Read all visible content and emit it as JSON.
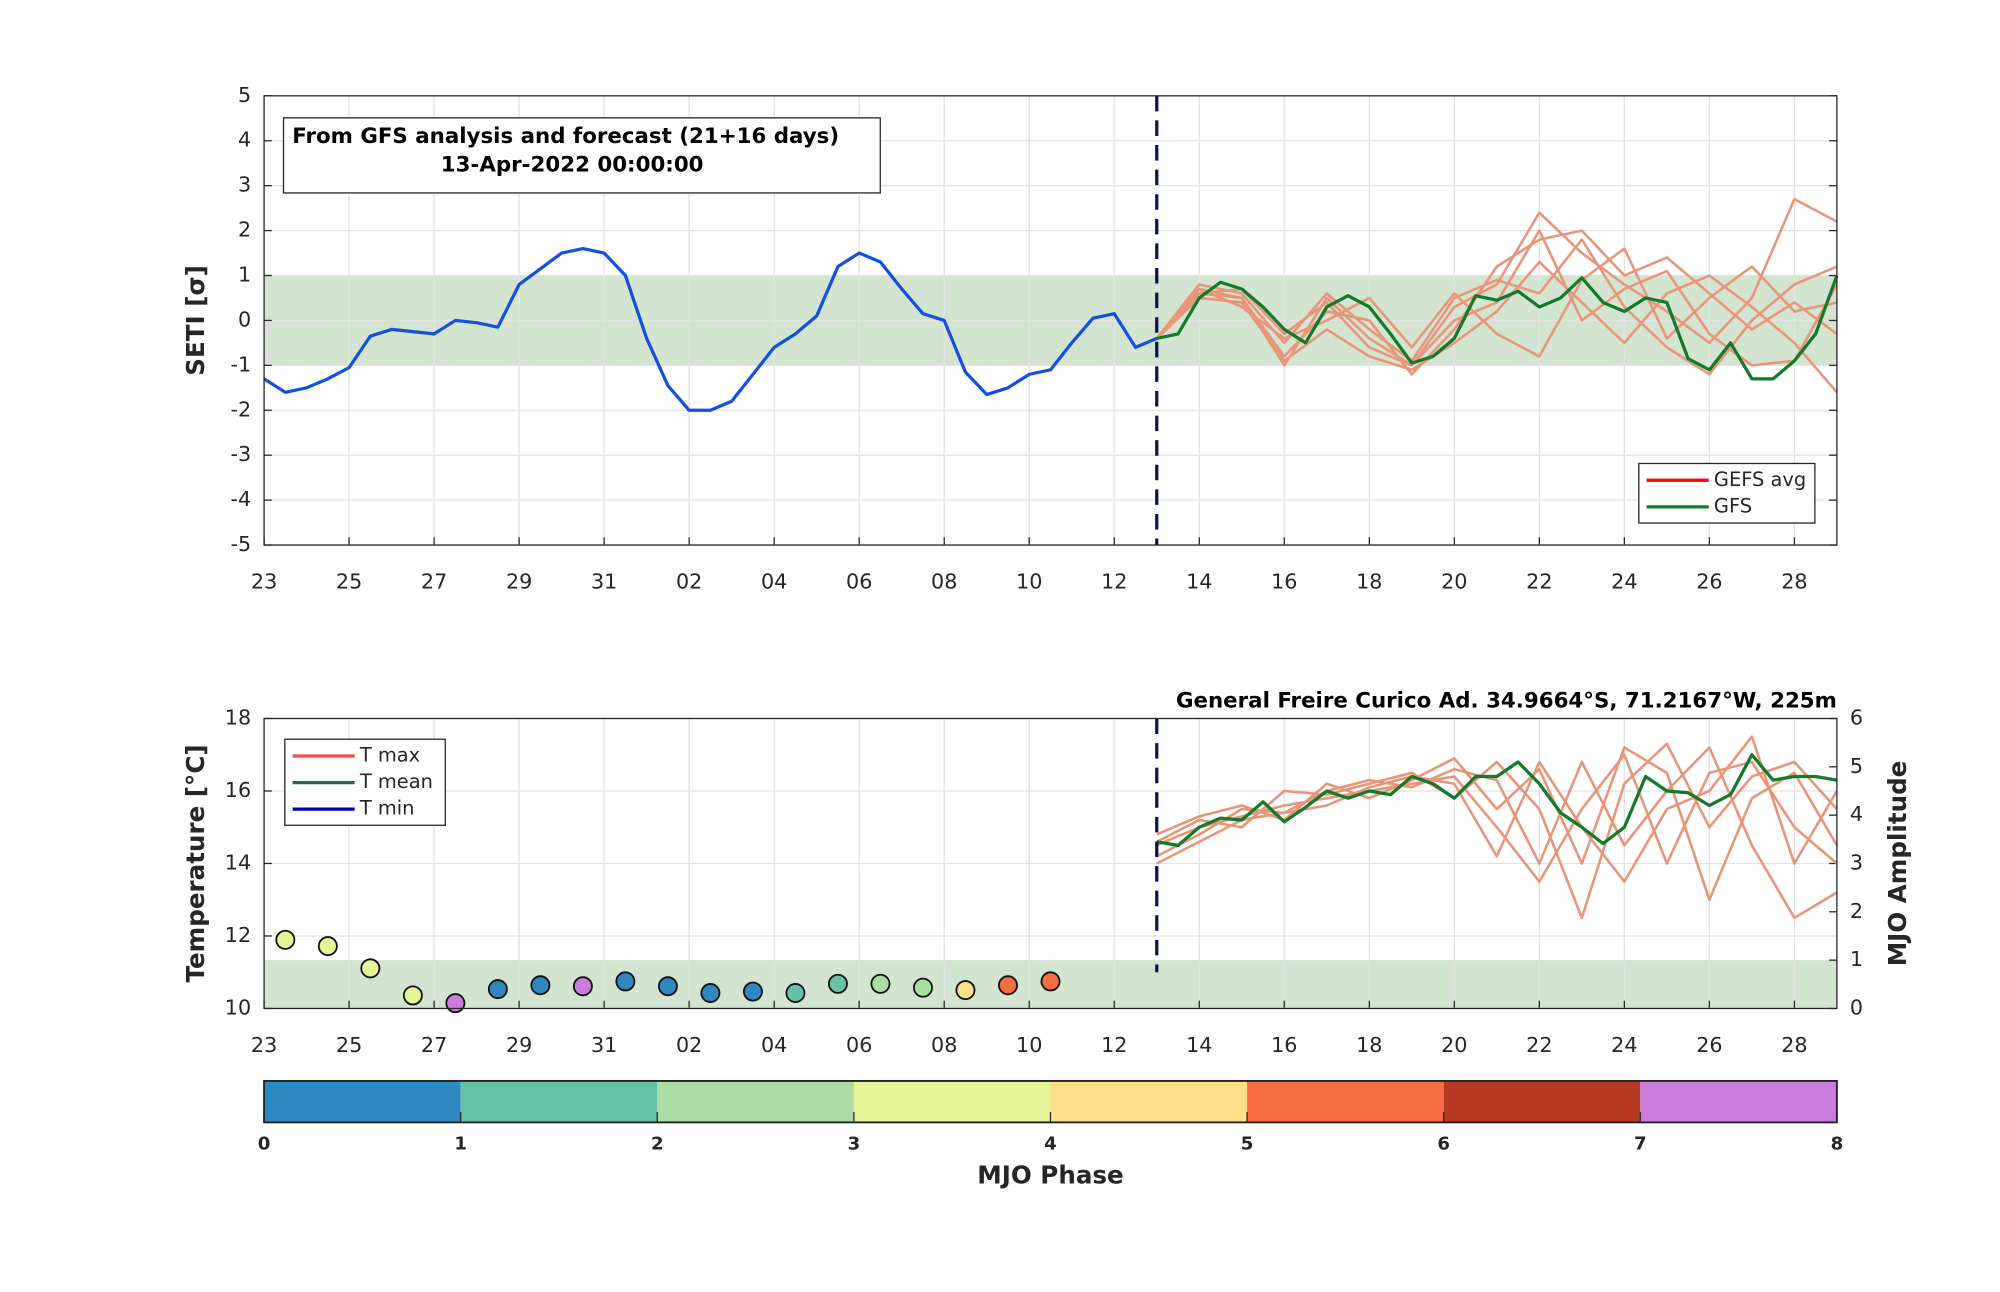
{
  "chart_data": [
    {
      "type": "line",
      "annotation": [
        "From GFS analysis and forecast (21+16 days)",
        "13-Apr-2022 00:00:00"
      ],
      "ylabel": "SETI [σ]",
      "xlim": [
        0,
        37
      ],
      "xticks": [
        {
          "value": 0,
          "label": "23"
        },
        {
          "value": 2,
          "label": "25"
        },
        {
          "value": 4,
          "label": "27"
        },
        {
          "value": 6,
          "label": "29"
        },
        {
          "value": 8,
          "label": "31"
        },
        {
          "value": 10,
          "label": "02"
        },
        {
          "value": 12,
          "label": "04"
        },
        {
          "value": 14,
          "label": "06"
        },
        {
          "value": 16,
          "label": "08"
        },
        {
          "value": 18,
          "label": "10"
        },
        {
          "value": 20,
          "label": "12"
        },
        {
          "value": 22,
          "label": "14"
        },
        {
          "value": 24,
          "label": "16"
        },
        {
          "value": 26,
          "label": "18"
        },
        {
          "value": 28,
          "label": "20"
        },
        {
          "value": 30,
          "label": "22"
        },
        {
          "value": 32,
          "label": "24"
        },
        {
          "value": 34,
          "label": "26"
        },
        {
          "value": 36,
          "label": "28"
        }
      ],
      "ylim": [
        -5,
        5
      ],
      "yticks": [
        -5,
        -4,
        -3,
        -2,
        -1,
        0,
        1,
        2,
        3,
        4,
        5
      ],
      "grid": true,
      "band": [
        -1,
        1
      ],
      "band_color": "#d3e4d0",
      "forecast_start": 21,
      "ensemble": {
        "color": "#e8967a",
        "x": [
          21,
          22,
          23,
          24,
          25,
          26,
          27,
          28,
          29,
          30,
          31,
          32,
          33,
          34,
          35,
          36,
          37
        ],
        "members": [
          [
            -0.4,
            0.6,
            0.7,
            -0.3,
            0.4,
            -0.6,
            -1.0,
            0.3,
            0.8,
            2.4,
            1.5,
            0.8,
            0.2,
            -0.5,
            0.5,
            2.7,
            2.2
          ],
          [
            -0.4,
            0.7,
            0.5,
            -0.8,
            0.2,
            0.0,
            -1.2,
            -0.2,
            1.2,
            1.8,
            2.0,
            1.0,
            1.4,
            0.6,
            -0.2,
            0.4,
            -0.3
          ],
          [
            -0.4,
            0.8,
            0.6,
            -0.5,
            0.6,
            -0.2,
            -0.9,
            0.5,
            0.9,
            0.6,
            1.8,
            0.3,
            -0.6,
            -1.2,
            0.0,
            0.8,
            1.2
          ],
          [
            -0.4,
            0.5,
            0.4,
            -0.9,
            -0.2,
            -0.8,
            -1.1,
            -0.5,
            0.2,
            1.3,
            0.4,
            -0.5,
            0.6,
            1.0,
            0.3,
            -0.5,
            -1.6
          ],
          [
            -0.4,
            0.7,
            0.3,
            -0.4,
            0.0,
            0.5,
            -0.6,
            0.6,
            -0.3,
            -0.8,
            0.9,
            1.6,
            -0.4,
            0.5,
            1.2,
            0.2,
            0.4
          ],
          [
            -0.4,
            0.6,
            0.5,
            -1.0,
            0.5,
            -0.4,
            -1.0,
            0.0,
            0.4,
            2.0,
            0.0,
            0.7,
            1.1,
            -0.3,
            -1.0,
            -0.9,
            0.8
          ]
        ]
      },
      "lines": [
        {
          "color": "#1450e0",
          "x": [
            0,
            0.5,
            1,
            1.5,
            2,
            2.5,
            3,
            3.5,
            4,
            4.5,
            5,
            5.5,
            6,
            6.5,
            7,
            7.5,
            8,
            8.5,
            9,
            9.5,
            10,
            10.5,
            11,
            11.5,
            12,
            12.5,
            13,
            13.5,
            14,
            14.5,
            15,
            15.5,
            16,
            16.5,
            17,
            17.5,
            18,
            18.5,
            19,
            19.5,
            20,
            20.5,
            21
          ],
          "values": [
            -1.3,
            -1.6,
            -1.5,
            -1.3,
            -1.05,
            -0.35,
            -0.2,
            -0.25,
            -0.3,
            0.0,
            -0.05,
            -0.15,
            0.8,
            1.15,
            1.5,
            1.6,
            1.5,
            1.0,
            -0.4,
            -1.45,
            -2.0,
            -2.0,
            -1.8,
            -1.2,
            -0.6,
            -0.3,
            0.1,
            1.2,
            1.5,
            1.3,
            0.7,
            0.15,
            0.0,
            -1.15,
            -1.65,
            -1.5,
            -1.2,
            -1.1,
            -0.5,
            0.05,
            0.15,
            -0.6,
            -0.4
          ]
        },
        {
          "color": "#127a2a",
          "x": [
            21,
            21.5,
            22,
            22.5,
            23,
            23.5,
            24,
            24.5,
            25,
            25.5,
            26,
            26.5,
            27,
            27.5,
            28,
            28.5,
            29,
            29.5,
            30,
            30.5,
            31,
            31.5,
            32,
            32.5,
            33,
            33.5,
            34,
            34.5,
            35,
            35.5,
            36,
            36.5,
            37
          ],
          "values": [
            -0.4,
            -0.3,
            0.5,
            0.85,
            0.7,
            0.3,
            -0.2,
            -0.5,
            0.3,
            0.55,
            0.3,
            -0.3,
            -0.95,
            -0.8,
            -0.4,
            0.55,
            0.45,
            0.65,
            0.3,
            0.5,
            0.95,
            0.4,
            0.2,
            0.5,
            0.4,
            -0.85,
            -1.1,
            -0.5,
            -1.3,
            -1.3,
            -0.9,
            -0.3,
            1.0
          ]
        }
      ],
      "legend": [
        {
          "name": "GEFS avg",
          "color": "#ff0000"
        },
        {
          "name": "GFS",
          "color": "#127a2a"
        }
      ],
      "legend_position": "lower right"
    },
    {
      "type": "line",
      "title": "General Freire Curico Ad. 34.9664°S, 71.2167°W, 225m",
      "ylabel": "Temperature [°C]",
      "y2label": "MJO Amplitude",
      "xlim": [
        0,
        37
      ],
      "xticks": [
        {
          "value": 0,
          "label": "23"
        },
        {
          "value": 2,
          "label": "25"
        },
        {
          "value": 4,
          "label": "27"
        },
        {
          "value": 6,
          "label": "29"
        },
        {
          "value": 8,
          "label": "31"
        },
        {
          "value": 10,
          "label": "02"
        },
        {
          "value": 12,
          "label": "04"
        },
        {
          "value": 14,
          "label": "06"
        },
        {
          "value": 16,
          "label": "08"
        },
        {
          "value": 18,
          "label": "10"
        },
        {
          "value": 20,
          "label": "12"
        },
        {
          "value": 22,
          "label": "14"
        },
        {
          "value": 24,
          "label": "16"
        },
        {
          "value": 26,
          "label": "18"
        },
        {
          "value": 28,
          "label": "20"
        },
        {
          "value": 30,
          "label": "22"
        },
        {
          "value": 32,
          "label": "24"
        },
        {
          "value": 34,
          "label": "26"
        },
        {
          "value": 36,
          "label": "28"
        }
      ],
      "ylim": [
        10,
        18
      ],
      "yticks": [
        10,
        12,
        14,
        16,
        18
      ],
      "y2lim": [
        0,
        6
      ],
      "y2ticks": [
        0,
        1,
        2,
        3,
        4,
        5,
        6
      ],
      "grid": true,
      "band": [
        0,
        1
      ],
      "band_axis": "y2",
      "band_color": "#d3e4d0",
      "forecast_start": 21,
      "ensemble": {
        "color": "#e8967a",
        "x": [
          21,
          22,
          23,
          24,
          25,
          26,
          27,
          28,
          29,
          30,
          31,
          32,
          33,
          34,
          35,
          36,
          37
        ],
        "members": [
          [
            14.5,
            15.0,
            15.3,
            15.6,
            15.8,
            16.0,
            16.2,
            16.4,
            15.0,
            13.5,
            15.5,
            17.0,
            14.0,
            16.5,
            16.8,
            15.0,
            14.0
          ],
          [
            14.2,
            14.8,
            15.5,
            15.4,
            16.0,
            16.3,
            16.1,
            16.6,
            16.3,
            14.0,
            16.8,
            14.5,
            16.0,
            17.2,
            14.5,
            12.5,
            13.2
          ],
          [
            14.6,
            15.2,
            15.0,
            16.0,
            15.9,
            16.2,
            16.5,
            15.8,
            16.8,
            15.5,
            12.5,
            16.2,
            17.3,
            15.0,
            16.4,
            16.8,
            15.5
          ],
          [
            14.0,
            14.6,
            15.2,
            15.4,
            15.6,
            16.1,
            16.4,
            16.2,
            14.2,
            16.8,
            15.0,
            13.5,
            15.5,
            16.0,
            17.5,
            14.0,
            16.0
          ],
          [
            14.8,
            15.3,
            15.6,
            15.2,
            16.2,
            15.8,
            16.3,
            16.9,
            15.5,
            16.6,
            14.0,
            17.2,
            16.5,
            13.0,
            15.8,
            16.5,
            14.5
          ]
        ]
      },
      "lines": [
        {
          "color": "#127a2a",
          "x": [
            21,
            21.5,
            22,
            22.5,
            23,
            23.5,
            24,
            24.5,
            25,
            25.5,
            26,
            26.5,
            27,
            27.5,
            28,
            28.5,
            29,
            29.5,
            30,
            30.5,
            31,
            31.5,
            32,
            32.5,
            33,
            33.5,
            34,
            34.5,
            35,
            35.5,
            36,
            36.5,
            37
          ],
          "values": [
            14.6,
            14.5,
            15.0,
            15.25,
            15.2,
            15.7,
            15.15,
            15.55,
            16.0,
            15.8,
            16.0,
            15.9,
            16.4,
            16.2,
            15.8,
            16.4,
            16.4,
            16.8,
            16.2,
            15.4,
            15.0,
            14.55,
            15.0,
            16.4,
            16.0,
            15.95,
            15.6,
            15.9,
            17.0,
            16.3,
            16.4,
            16.4,
            16.3
          ]
        }
      ],
      "mjo": {
        "axis": "y2",
        "x": [
          0.5,
          1.5,
          2.5,
          3.5,
          4.5,
          5.5,
          6.5,
          7.5,
          8.5,
          9.5,
          10.5,
          11.5,
          12.5,
          13.5,
          14.5,
          15.5,
          16.5,
          17.5,
          18.5
        ],
        "amplitude": [
          1.42,
          1.29,
          0.83,
          0.27,
          0.11,
          0.4,
          0.48,
          0.46,
          0.56,
          0.46,
          0.32,
          0.35,
          0.32,
          0.51,
          0.51,
          0.43,
          0.38,
          0.48,
          0.56
        ],
        "phase": [
          3.5,
          3.5,
          3.5,
          3.5,
          7.5,
          0.5,
          0.5,
          7.5,
          0.5,
          0.5,
          0.5,
          0.5,
          1.5,
          1.5,
          2.5,
          2.5,
          4.5,
          5.5,
          5.5
        ]
      },
      "legend": [
        {
          "name": "T max",
          "color": "#ff4a4a"
        },
        {
          "name": "T mean",
          "color": "#1b6e5c"
        },
        {
          "name": "T min",
          "color": "#0000b0"
        }
      ],
      "legend_position": "upper left",
      "colorbar": {
        "label": "MJO Phase",
        "ticks": [
          0,
          1,
          2,
          3,
          4,
          5,
          6,
          7,
          8
        ],
        "colors": [
          "#2f87c0",
          "#66c2a5",
          "#abdda4",
          "#e6f598",
          "#fee08b",
          "#f46d43",
          "#b73a22",
          "#c97ddc"
        ]
      }
    }
  ]
}
